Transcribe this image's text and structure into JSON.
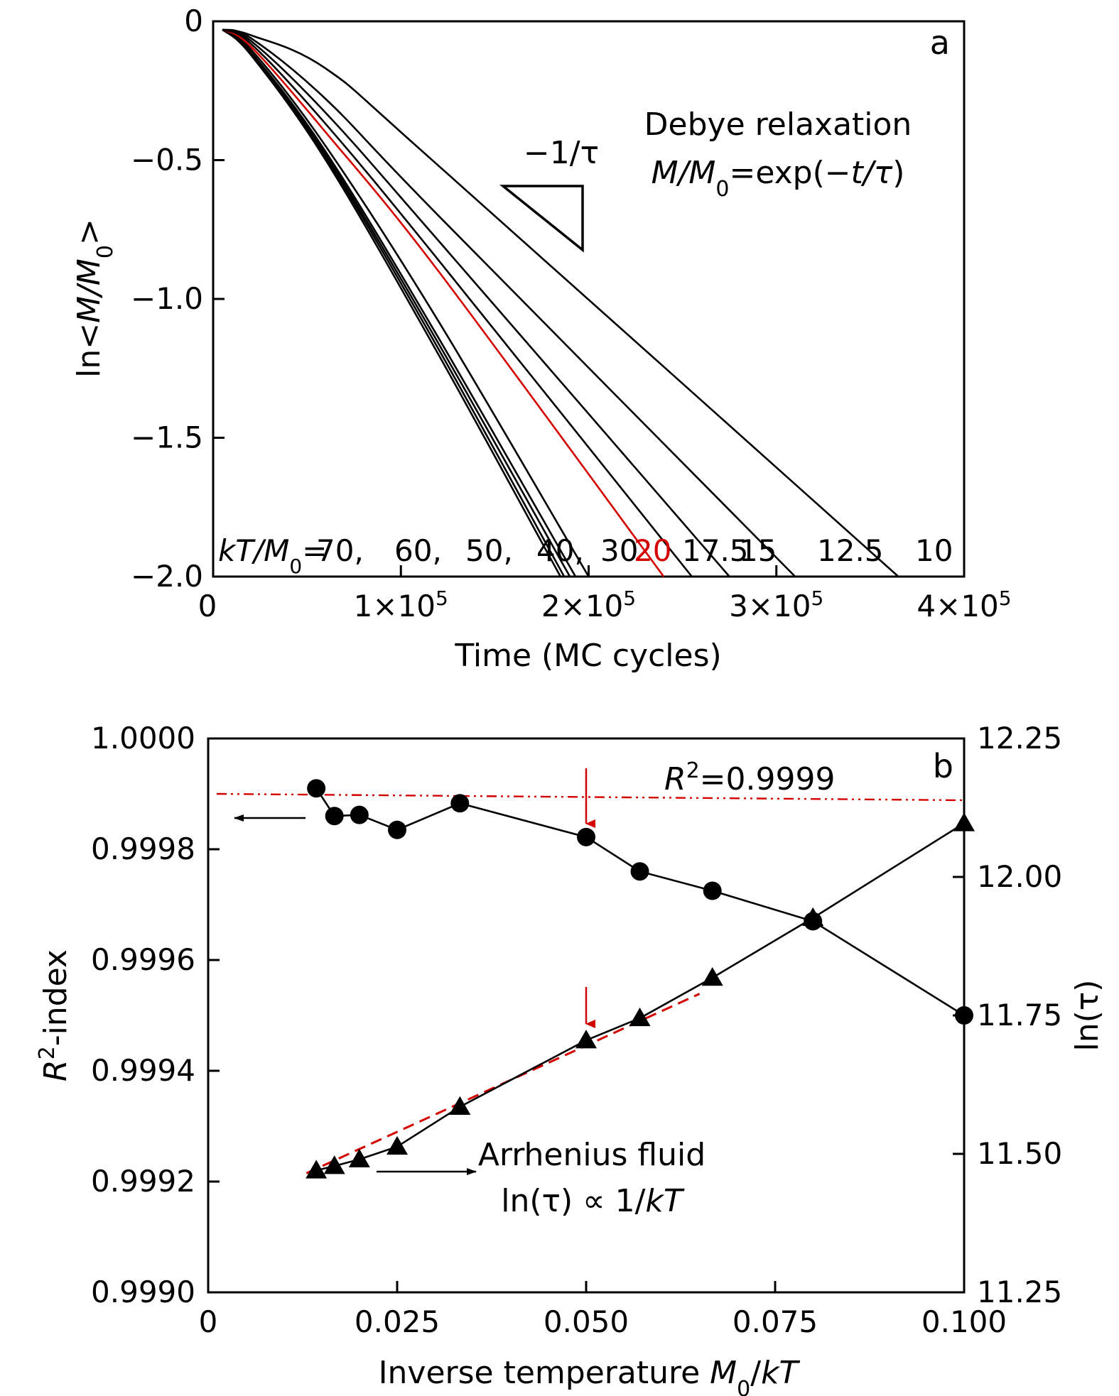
{
  "chart_data": [
    {
      "panel": "a",
      "type": "line",
      "xlabel": "Time (MC cycles)",
      "ylabel_parts": {
        "pre": "ln<",
        "ital": "M/M",
        "sub": "0",
        "post": ">"
      },
      "xlim": [
        0,
        400000
      ],
      "ylim": [
        -2.0,
        0
      ],
      "x_ticks": [
        0,
        100000,
        200000,
        300000,
        400000
      ],
      "x_tick_labels": [
        {
          "base": "0",
          "exp": ""
        },
        {
          "base": "1×10",
          "exp": "5"
        },
        {
          "base": "2×10",
          "exp": "5"
        },
        {
          "base": "3×10",
          "exp": "5"
        },
        {
          "base": "4×10",
          "exp": "5"
        }
      ],
      "y_ticks": [
        0,
        -0.5,
        -1.0,
        -1.5,
        -2.0
      ],
      "y_tick_labels": [
        "0",
        "−0.5",
        "−1.0",
        "−1.5",
        "−2.0"
      ],
      "annotation": {
        "line1": "Debye relaxation",
        "line2": {
          "ital1": "M/M",
          "sub": "0",
          "mid": "=exp(−",
          "ital2": "t/τ",
          "end": ")"
        },
        "slope_label": "−1/τ"
      },
      "label_prefix": {
        "ital": "kT/M",
        "sub": "0",
        "rest": "="
      },
      "series": [
        {
          "name": "70",
          "color": "#000000",
          "x": [
            5000,
            20000,
            60000,
            120000,
            185000
          ],
          "y": [
            -0.03,
            -0.12,
            -0.5,
            -1.2,
            -2.0
          ]
        },
        {
          "name": "60",
          "color": "#000000",
          "x": [
            5000,
            20000,
            60000,
            120000,
            187000
          ],
          "y": [
            -0.03,
            -0.12,
            -0.49,
            -1.18,
            -2.0
          ]
        },
        {
          "name": "50",
          "color": "#000000",
          "x": [
            5000,
            20000,
            60000,
            120000,
            190000
          ],
          "y": [
            -0.03,
            -0.11,
            -0.48,
            -1.16,
            -2.0
          ]
        },
        {
          "name": "40",
          "color": "#000000",
          "x": [
            5000,
            20000,
            60000,
            120000,
            193000
          ],
          "y": [
            -0.03,
            -0.11,
            -0.47,
            -1.14,
            -2.0
          ]
        },
        {
          "name": "30",
          "color": "#000000",
          "x": [
            5000,
            20000,
            60000,
            120000,
            200000
          ],
          "y": [
            -0.03,
            -0.1,
            -0.45,
            -1.08,
            -2.0
          ]
        },
        {
          "name": "20",
          "color": "#d40000",
          "x": [
            5000,
            20000,
            60000,
            120000,
            240000
          ],
          "y": [
            -0.03,
            -0.09,
            -0.4,
            -0.9,
            -2.0
          ]
        },
        {
          "name": "17.5",
          "color": "#000000",
          "x": [
            5000,
            20000,
            60000,
            120000,
            255000
          ],
          "y": [
            -0.03,
            -0.08,
            -0.37,
            -0.86,
            -2.0
          ]
        },
        {
          "name": "15",
          "color": "#000000",
          "x": [
            5000,
            20000,
            60000,
            120000,
            275000
          ],
          "y": [
            -0.03,
            -0.07,
            -0.33,
            -0.79,
            -2.0
          ]
        },
        {
          "name": "12.5",
          "color": "#000000",
          "x": [
            5000,
            20000,
            60000,
            120000,
            310000
          ],
          "y": [
            -0.03,
            -0.06,
            -0.28,
            -0.7,
            -2.0
          ]
        },
        {
          "name": "10",
          "color": "#000000",
          "x": [
            5000,
            20000,
            60000,
            120000,
            365000
          ],
          "y": [
            -0.03,
            -0.05,
            -0.17,
            -0.52,
            -2.0
          ]
        }
      ]
    },
    {
      "panel": "b",
      "type": "line",
      "xlabel_parts": {
        "pre": "Inverse temperature ",
        "ital": "M",
        "sub": "0",
        "post": "/",
        "ital2": "kT"
      },
      "ylabel_left_parts": {
        "ital": "R",
        "sup": "2",
        "post": "-index"
      },
      "ylabel_right": "ln(τ)",
      "xlim": [
        0,
        0.1
      ],
      "ylim_left": [
        0.999,
        1.0
      ],
      "ylim_right": [
        11.25,
        12.25
      ],
      "x_ticks": [
        0,
        0.025,
        0.05,
        0.075,
        0.1
      ],
      "x_tick_labels": [
        "0",
        "0.025",
        "0.050",
        "0.075",
        "0.100"
      ],
      "y_left_ticks": [
        0.999,
        0.9992,
        0.9994,
        0.9996,
        0.9998,
        1.0
      ],
      "y_left_tick_labels": [
        "0.9990",
        "0.9992",
        "0.9994",
        "0.9996",
        "0.9998",
        "1.0000"
      ],
      "y_right_ticks": [
        11.25,
        11.5,
        11.75,
        12.0,
        12.25
      ],
      "y_right_tick_labels": [
        "11.25",
        "11.50",
        "11.75",
        "12.00",
        "12.25"
      ],
      "r2_series": {
        "name": "R2-index",
        "axis": "left",
        "x": [
          0.0143,
          0.0167,
          0.02,
          0.025,
          0.0333,
          0.05,
          0.0571,
          0.0667,
          0.08,
          0.1
        ],
        "y": [
          0.99991,
          0.99986,
          0.999862,
          0.999835,
          0.999883,
          0.999822,
          0.99976,
          0.999725,
          0.99967,
          0.9995
        ]
      },
      "lntau_series": {
        "name": "ln(tau)",
        "axis": "right",
        "x": [
          0.0143,
          0.0167,
          0.02,
          0.025,
          0.0333,
          0.05,
          0.0571,
          0.0667,
          0.08,
          0.1
        ],
        "y": [
          11.47,
          11.478,
          11.49,
          11.513,
          11.585,
          11.705,
          11.745,
          11.818,
          11.926,
          12.097
        ]
      },
      "r2_threshold": {
        "value": 0.9999,
        "label_ital": "R",
        "label_sup": "2",
        "label_rest": "=0.9999",
        "color": "#d40000"
      },
      "arrhenius_fit": {
        "x": [
          0.013,
          0.065
        ],
        "y": [
          11.465,
          11.789
        ],
        "color": "#d40000"
      },
      "markers_at": 0.05,
      "annotation": {
        "line1": "Arrhenius fluid",
        "line2_pre": "ln(τ) ∝ 1/",
        "line2_ital": "kT"
      }
    }
  ]
}
